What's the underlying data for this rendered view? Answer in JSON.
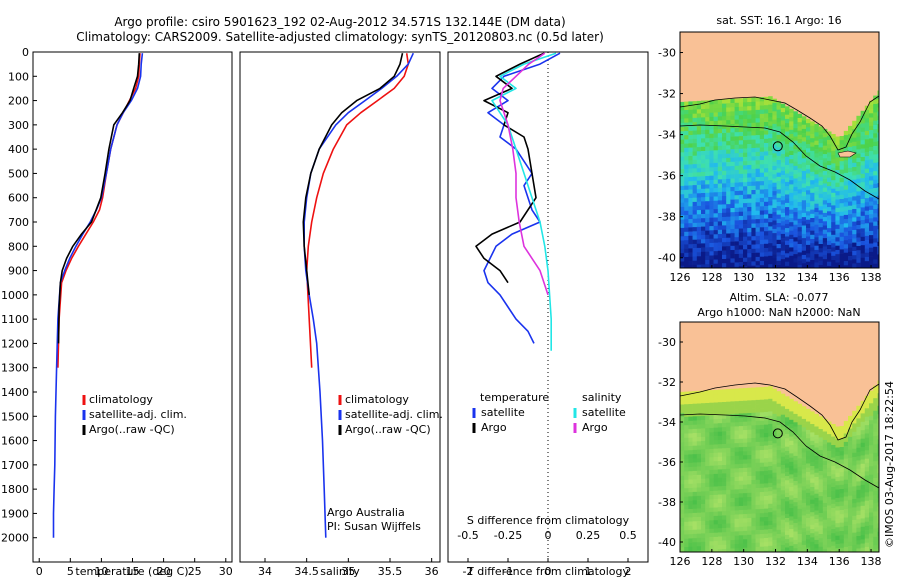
{
  "title": {
    "line1": "Argo profile: csiro 5901623_192 02-Aug-2012 34.571S 132.144E (DM data)",
    "line2": "Climatology: CARS2009. Satellite-adjusted climatology: synTS_20120803.nc (0.5d later)"
  },
  "colors": {
    "climatology": "#ee1111",
    "satellite": "#1a33ee",
    "argo": "#000000",
    "salinity_satellite": "#22e6e6",
    "salinity_argo": "#dd33dd",
    "land": "#f9c196"
  },
  "chart_data": [
    {
      "id": "temperature",
      "type": "line",
      "xlabel": "temperature (deg C)",
      "ylabel": "",
      "xlim": [
        -1,
        31
      ],
      "ylim": [
        2100,
        0
      ],
      "xticks": [
        0,
        5,
        10,
        15,
        20,
        25,
        30
      ],
      "yticks": [
        0,
        100,
        200,
        300,
        400,
        500,
        600,
        700,
        800,
        900,
        1000,
        1100,
        1200,
        1300,
        1400,
        1500,
        1600,
        1700,
        1800,
        1900,
        2000
      ],
      "legend": [
        "climatology",
        "satellite-adj. clim.",
        "Argo(..raw -QC)"
      ],
      "series": [
        {
          "name": "climatology",
          "color": "#ee1111",
          "x": [
            16.2,
            16.1,
            16.0,
            15.5,
            14.5,
            13.5,
            12.5,
            11.5,
            10.8,
            10.2,
            9.7,
            8.7,
            7.5,
            6.3,
            5.2,
            4.3,
            3.6,
            3.2,
            3.0
          ],
          "y": [
            5,
            50,
            100,
            150,
            200,
            250,
            300,
            400,
            500,
            600,
            650,
            700,
            750,
            800,
            850,
            900,
            950,
            1100,
            1300
          ]
        },
        {
          "name": "satellite-adj. clim.",
          "color": "#1a33ee",
          "x": [
            16.6,
            16.4,
            16.3,
            15.8,
            14.8,
            13.5,
            12.5,
            11.5,
            10.8,
            10.0,
            9.2,
            8.2,
            7.0,
            5.9,
            4.9,
            4.1,
            3.4,
            3.0,
            2.8,
            2.6,
            2.5,
            2.4,
            2.3,
            2.3
          ],
          "y": [
            5,
            50,
            100,
            150,
            200,
            250,
            300,
            400,
            500,
            600,
            650,
            700,
            750,
            800,
            850,
            900,
            950,
            1100,
            1300,
            1500,
            1700,
            1800,
            1900,
            2000
          ]
        },
        {
          "name": "Argo(..raw -QC)",
          "color": "#000000",
          "x": [
            16.1,
            16.0,
            15.8,
            15.2,
            14.6,
            13.4,
            12.0,
            11.2,
            10.6,
            9.9,
            8.4,
            6.8,
            5.4,
            4.4,
            3.7,
            3.4,
            3.2,
            3.1
          ],
          "y": [
            5,
            50,
            100,
            150,
            200,
            250,
            300,
            400,
            500,
            600,
            700,
            750,
            800,
            850,
            900,
            950,
            1050,
            1200
          ]
        }
      ]
    },
    {
      "id": "salinity",
      "type": "line",
      "xlabel": "salinity",
      "ylabel": "",
      "xlim": [
        33.7,
        36.1
      ],
      "ylim": [
        2100,
        0
      ],
      "xticks": [
        34,
        34.5,
        35,
        35.5,
        36
      ],
      "legend": [
        "climatology",
        "satellite-adj. clim.",
        "Argo(..raw -QC)"
      ],
      "annotation": [
        "Argo Australia",
        "PI: Susan Wijffels"
      ],
      "series": [
        {
          "name": "climatology",
          "color": "#ee1111",
          "x": [
            35.7,
            35.72,
            35.67,
            35.55,
            35.35,
            35.15,
            34.98,
            34.82,
            34.7,
            34.62,
            34.56,
            34.52,
            34.5,
            34.53,
            34.56
          ],
          "y": [
            5,
            50,
            100,
            150,
            200,
            250,
            300,
            400,
            500,
            600,
            700,
            800,
            900,
            1100,
            1300
          ]
        },
        {
          "name": "satellite-adj. clim.",
          "color": "#1a33ee",
          "x": [
            35.78,
            35.72,
            35.58,
            35.4,
            35.2,
            35.0,
            34.85,
            34.65,
            34.55,
            34.5,
            34.47,
            34.47,
            34.49,
            34.53,
            34.58,
            34.62,
            34.66,
            34.69,
            34.71,
            34.72,
            34.73
          ],
          "y": [
            5,
            50,
            100,
            150,
            200,
            250,
            300,
            400,
            500,
            600,
            700,
            800,
            900,
            1000,
            1100,
            1200,
            1400,
            1600,
            1800,
            1900,
            2000
          ]
        },
        {
          "name": "Argo(..raw -QC)",
          "color": "#000000",
          "x": [
            35.65,
            35.62,
            35.55,
            35.38,
            35.1,
            34.92,
            34.8,
            34.65,
            34.55,
            34.49,
            34.46,
            34.47,
            34.5,
            34.53
          ],
          "y": [
            5,
            50,
            100,
            150,
            200,
            250,
            300,
            400,
            500,
            600,
            700,
            800,
            900,
            1000
          ]
        }
      ]
    },
    {
      "id": "differences",
      "type": "line",
      "xlabel": "T difference from climatology",
      "top_label": "S difference from climatology",
      "xlim": [
        -2.5,
        2.5
      ],
      "ylim": [
        2100,
        0
      ],
      "xticks": [
        -2,
        -1,
        0,
        1,
        2
      ],
      "top_ticks": [
        "-0.5",
        "-0.25",
        "0",
        "0.25",
        "0.5"
      ],
      "legend_titles": [
        "temperature",
        "salinity"
      ],
      "legend": [
        "satellite",
        "Argo",
        "satellite",
        "Argo"
      ],
      "series": [
        {
          "name": "satellite",
          "color": "#1a33ee",
          "x": [
            0.3,
            -0.2,
            -1.1,
            -1.4,
            -1.0,
            -1.5,
            -1.1,
            -1.2,
            -0.8,
            -0.4,
            -0.6,
            -0.5,
            -0.4,
            -0.2,
            -0.9,
            -1.3,
            -1.6,
            -1.5,
            -1.2,
            -0.8,
            -0.5,
            -0.35
          ],
          "y": [
            5,
            50,
            100,
            150,
            200,
            250,
            300,
            350,
            400,
            500,
            550,
            600,
            650,
            700,
            750,
            800,
            900,
            950,
            1000,
            1100,
            1150,
            1200
          ]
        },
        {
          "name": "Argo",
          "color": "#000000",
          "x": [
            -0.1,
            -0.7,
            -1.3,
            -0.9,
            -1.6,
            -1.0,
            -1.1,
            -0.6,
            -0.5,
            -0.3,
            -0.7,
            -1.4,
            -1.8,
            -1.6,
            -1.2,
            -1.0
          ],
          "y": [
            5,
            50,
            100,
            150,
            200,
            250,
            300,
            350,
            400,
            600,
            700,
            750,
            800,
            850,
            900,
            950
          ]
        },
        {
          "name": "satellite",
          "color": "#22e6e6",
          "x": [
            0.05,
            -0.15,
            -0.3,
            -0.2,
            -0.35,
            -0.25,
            -0.2,
            -0.15,
            -0.1,
            -0.05,
            -0.02,
            0.0,
            0.01,
            0.02,
            0.02,
            0.02
          ],
          "y": [
            5,
            50,
            100,
            150,
            200,
            300,
            400,
            500,
            600,
            700,
            800,
            900,
            1000,
            1100,
            1200,
            1230
          ]
        },
        {
          "name": "Argo",
          "color": "#dd33dd",
          "x": [
            -0.02,
            -0.12,
            -0.2,
            -0.28,
            -0.3,
            -0.25,
            -0.22,
            -0.2,
            -0.2,
            -0.18,
            -0.15,
            -0.1,
            -0.05,
            0.0
          ],
          "y": [
            5,
            50,
            100,
            150,
            200,
            300,
            400,
            500,
            600,
            700,
            800,
            850,
            900,
            1000
          ]
        }
      ]
    },
    {
      "id": "sst_map",
      "type": "heatmap",
      "title": "sat. SST: 16.1 Argo: 16",
      "xticks": [
        126,
        128,
        130,
        132,
        134,
        136,
        138
      ],
      "yticks": [
        -30,
        -32,
        -34,
        -36,
        -38,
        -40
      ],
      "xlim": [
        126,
        138.5
      ],
      "ylim": [
        -40.5,
        -29
      ],
      "marker": {
        "lon": 132.144,
        "lat": -34.571
      }
    },
    {
      "id": "sla_map",
      "type": "heatmap",
      "title": "Altim. SLA: -0.077",
      "subtitle": "Argo h1000: NaN h2000: NaN",
      "xticks": [
        126,
        128,
        130,
        132,
        134,
        136,
        138
      ],
      "yticks": [
        -30,
        -32,
        -34,
        -36,
        -38,
        -40
      ],
      "xlim": [
        126,
        138.5
      ],
      "ylim": [
        -40.5,
        -29
      ],
      "marker": {
        "lon": 132.144,
        "lat": -34.571
      }
    }
  ],
  "credit": "©IMOS 03-Aug-2017 18:22:54"
}
